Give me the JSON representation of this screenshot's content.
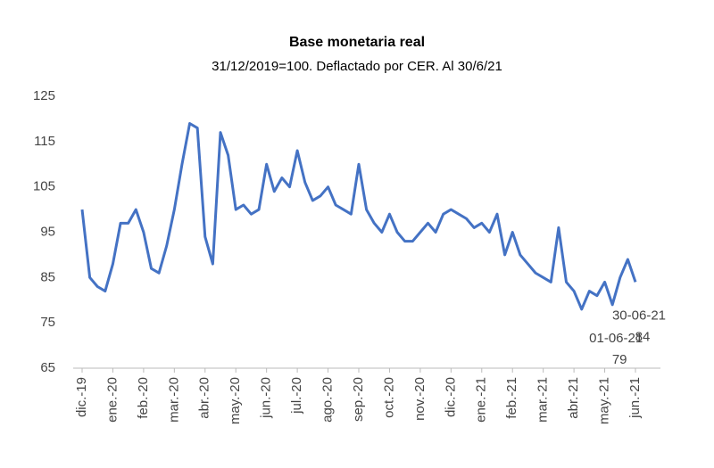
{
  "chart_data": {
    "type": "line",
    "title": "Base monetaria real",
    "subtitle": "31/12/2019=100. Deflactado por CER. Al 30/6/21",
    "categories": [
      "dic.-19",
      null,
      null,
      null,
      "ene.-20",
      null,
      null,
      null,
      "feb.-20",
      null,
      null,
      null,
      "mar.-20",
      null,
      null,
      null,
      "abr.-20",
      null,
      null,
      null,
      "may.-20",
      null,
      null,
      null,
      "jun.-20",
      null,
      null,
      null,
      "jul.-20",
      null,
      null,
      null,
      "ago.-20",
      null,
      null,
      null,
      "sep.-20",
      null,
      null,
      null,
      "oct.-20",
      null,
      null,
      null,
      "nov.-20",
      null,
      null,
      null,
      "dic.-20",
      null,
      null,
      null,
      "ene.-21",
      null,
      null,
      null,
      "feb.-21",
      null,
      null,
      null,
      "mar.-21",
      null,
      null,
      null,
      "abr.-21",
      null,
      null,
      null,
      "may.-21",
      null,
      null,
      null,
      "jun.-21"
    ],
    "series": [
      {
        "name": "Base monetaria real",
        "color": "#4472c4",
        "values": [
          100,
          85,
          83,
          82,
          88,
          97,
          97,
          100,
          95,
          87,
          86,
          92,
          100,
          110,
          119,
          118,
          94,
          88,
          117,
          112,
          100,
          101,
          99,
          100,
          110,
          104,
          107,
          105,
          113,
          106,
          102,
          103,
          105,
          101,
          100,
          99,
          110,
          100,
          97,
          95,
          99,
          95,
          93,
          93,
          95,
          97,
          95,
          99,
          100,
          99,
          98,
          96,
          97,
          95,
          99,
          90,
          95,
          90,
          88,
          86,
          85,
          84,
          96,
          84,
          82,
          78,
          82,
          81,
          84,
          79,
          85,
          89,
          84
        ],
        "value_labels": [
          null,
          null,
          null,
          null,
          null,
          null,
          null,
          null,
          null,
          null,
          null,
          null,
          null,
          null,
          null,
          null,
          null,
          null,
          null,
          null,
          null,
          null,
          null,
          null,
          null,
          null,
          null,
          null,
          null,
          null,
          null,
          null,
          null,
          null,
          null,
          null,
          null,
          null,
          null,
          null,
          null,
          null,
          null,
          null,
          null,
          null,
          null,
          null,
          null,
          null,
          null,
          null,
          null,
          null,
          null,
          null,
          null,
          null,
          null,
          null,
          null,
          null,
          null,
          null,
          null,
          null,
          null,
          null,
          null,
          "79",
          null,
          null,
          "84"
        ]
      }
    ],
    "annotations": [
      "01-06-21",
      "30-06-21"
    ],
    "ylim": [
      65,
      125
    ],
    "yticks": [
      65,
      75,
      85,
      95,
      105,
      115,
      125
    ],
    "grid": false
  }
}
